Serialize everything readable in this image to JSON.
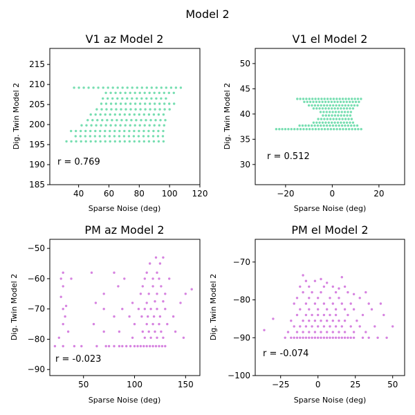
{
  "figure": {
    "suptitle": "Model 2"
  },
  "colors": {
    "green": "#2ecc87",
    "magenta": "#c03fd0"
  },
  "chart_data": [
    {
      "type": "scatter",
      "title": "V1 az Model 2",
      "xlabel": "Sparse Noise (deg)",
      "ylabel": "Dig. Twin Model 2",
      "xlim": [
        21,
        120
      ],
      "ylim": [
        185,
        219
      ],
      "xticks": [
        40,
        60,
        80,
        100,
        120
      ],
      "yticks": [
        185,
        190,
        195,
        200,
        205,
        210,
        215
      ],
      "annotation": "r = 0.769",
      "color_key": "green",
      "rows": [
        {
          "y": 195.8,
          "xmin": 32,
          "xmax": 96
        },
        {
          "y": 197.1,
          "xmin": 38,
          "xmax": 96
        },
        {
          "y": 198.4,
          "xmin": 35,
          "xmax": 98
        },
        {
          "y": 199.8,
          "xmin": 42,
          "xmax": 97
        },
        {
          "y": 201.1,
          "xmin": 46,
          "xmax": 100
        },
        {
          "y": 202.5,
          "xmin": 48,
          "xmax": 99
        },
        {
          "y": 203.8,
          "xmin": 52,
          "xmax": 101
        },
        {
          "y": 205.2,
          "xmin": 55,
          "xmax": 103
        },
        {
          "y": 206.5,
          "xmin": 56,
          "xmax": 100
        },
        {
          "y": 207.9,
          "xmin": 58,
          "xmax": 105
        },
        {
          "y": 209.2,
          "xmin": 37,
          "xmax": 110
        }
      ]
    },
    {
      "type": "scatter",
      "title": "V1 el Model 2",
      "xlabel": "Sparse Noise (deg)",
      "ylabel": "Dig. Twin Model 2",
      "xlim": [
        -33,
        31
      ],
      "ylim": [
        26,
        53
      ],
      "xticks": [
        -20,
        0,
        20
      ],
      "yticks": [
        30,
        35,
        40,
        45,
        50
      ],
      "annotation": "r = 0.512",
      "color_key": "green",
      "rows": [
        {
          "y": 37.0,
          "xmin": -24,
          "xmax": 13
        },
        {
          "y": 37.7,
          "xmin": -14,
          "xmax": 11
        },
        {
          "y": 38.3,
          "xmin": -8,
          "xmax": 10
        },
        {
          "y": 39.0,
          "xmin": -6,
          "xmax": 9
        },
        {
          "y": 39.7,
          "xmin": -4,
          "xmax": 8
        },
        {
          "y": 40.4,
          "xmin": -5,
          "xmax": 9
        },
        {
          "y": 41.1,
          "xmin": -8,
          "xmax": 10
        },
        {
          "y": 41.7,
          "xmin": -10,
          "xmax": 11
        },
        {
          "y": 42.4,
          "xmin": -12,
          "xmax": 12
        },
        {
          "y": 43.0,
          "xmin": -15,
          "xmax": 13
        }
      ]
    },
    {
      "type": "scatter",
      "title": "PM az Model 2",
      "xlabel": "Sparse Noise (deg)",
      "ylabel": "Dig. Twin Model 2",
      "xlim": [
        17,
        164
      ],
      "ylim": [
        -92,
        -47
      ],
      "xticks": [
        50,
        100,
        150
      ],
      "yticks": [
        -90,
        -80,
        -70,
        -60,
        -50
      ],
      "annotation": "r = -0.023",
      "color_key": "magenta",
      "points": [
        [
          22,
          -82.3
        ],
        [
          30,
          -82.3
        ],
        [
          41,
          -82.3
        ],
        [
          48,
          -82.3
        ],
        [
          63,
          -82.3
        ],
        [
          72,
          -82.3
        ],
        [
          75,
          -82.3
        ],
        [
          80,
          -82.3
        ],
        [
          85,
          -82.3
        ],
        [
          88,
          -82.3
        ],
        [
          92,
          -82.3
        ],
        [
          96,
          -82.3
        ],
        [
          100,
          -82.3
        ],
        [
          103,
          -82.3
        ],
        [
          106,
          -82.3
        ],
        [
          109,
          -82.3
        ],
        [
          112,
          -82.3
        ],
        [
          115,
          -82.3
        ],
        [
          118,
          -82.3
        ],
        [
          121,
          -82.3
        ],
        [
          124,
          -82.3
        ],
        [
          127,
          -82.3
        ],
        [
          130,
          -82.3
        ],
        [
          26,
          -79.5
        ],
        [
          98,
          -79.5
        ],
        [
          110,
          -79.5
        ],
        [
          116,
          -79.5
        ],
        [
          122,
          -79.5
        ],
        [
          128,
          -79.5
        ],
        [
          148,
          -79.5
        ],
        [
          35,
          -77.5
        ],
        [
          70,
          -77.5
        ],
        [
          85,
          -77.5
        ],
        [
          108,
          -77.5
        ],
        [
          114,
          -77.5
        ],
        [
          120,
          -77.5
        ],
        [
          126,
          -77.5
        ],
        [
          140,
          -77.5
        ],
        [
          30,
          -75
        ],
        [
          60,
          -75
        ],
        [
          100,
          -75
        ],
        [
          112,
          -75
        ],
        [
          118,
          -75
        ],
        [
          124,
          -75
        ],
        [
          132,
          -75
        ],
        [
          32,
          -72.5
        ],
        [
          80,
          -72.5
        ],
        [
          95,
          -72.5
        ],
        [
          107,
          -72.5
        ],
        [
          113,
          -72.5
        ],
        [
          119,
          -72.5
        ],
        [
          125,
          -72.5
        ],
        [
          138,
          -72.5
        ],
        [
          30,
          -70
        ],
        [
          70,
          -70
        ],
        [
          88,
          -70
        ],
        [
          104,
          -70
        ],
        [
          110,
          -70
        ],
        [
          116,
          -70
        ],
        [
          122,
          -70
        ],
        [
          130,
          -70
        ],
        [
          33,
          -69
        ],
        [
          62,
          -68
        ],
        [
          98,
          -68
        ],
        [
          112,
          -68
        ],
        [
          120,
          -67.5
        ],
        [
          128,
          -67.5
        ],
        [
          145,
          -68
        ],
        [
          28,
          -66
        ],
        [
          70,
          -65
        ],
        [
          106,
          -65
        ],
        [
          114,
          -65
        ],
        [
          122,
          -65
        ],
        [
          130,
          -65
        ],
        [
          150,
          -65
        ],
        [
          30,
          -62.5
        ],
        [
          84,
          -62.5
        ],
        [
          108,
          -62.5
        ],
        [
          118,
          -62.5
        ],
        [
          126,
          -62.5
        ],
        [
          28,
          -60
        ],
        [
          38,
          -60
        ],
        [
          90,
          -60
        ],
        [
          110,
          -60
        ],
        [
          118,
          -60
        ],
        [
          124,
          -60
        ],
        [
          134,
          -60
        ],
        [
          30,
          -58
        ],
        [
          58,
          -58
        ],
        [
          80,
          -58
        ],
        [
          112,
          -58
        ],
        [
          122,
          -58
        ],
        [
          115,
          -55
        ],
        [
          125,
          -55
        ],
        [
          121,
          -53
        ],
        [
          128,
          -53
        ],
        [
          156,
          -63.5
        ]
      ]
    },
    {
      "type": "scatter",
      "title": "PM el Model 2",
      "xlabel": "Sparse Noise (deg)",
      "ylabel": "Dig. Twin Model 2",
      "xlim": [
        -42,
        58
      ],
      "ylim": [
        -100,
        -64
      ],
      "xticks": [
        -25,
        0,
        25,
        50
      ],
      "yticks": [
        -100,
        -90,
        -80,
        -70
      ],
      "annotation": "r = -0.074",
      "color_key": "magenta",
      "points": [
        [
          -36,
          -88
        ],
        [
          -30,
          -85
        ],
        [
          -22,
          -90
        ],
        [
          -18,
          -90
        ],
        [
          -16,
          -90
        ],
        [
          -14,
          -90
        ],
        [
          -12,
          -90
        ],
        [
          -10,
          -90
        ],
        [
          -8,
          -90
        ],
        [
          -6,
          -90
        ],
        [
          -4,
          -90
        ],
        [
          -2,
          -90
        ],
        [
          0,
          -90
        ],
        [
          2,
          -90
        ],
        [
          4,
          -90
        ],
        [
          6,
          -90
        ],
        [
          8,
          -90
        ],
        [
          10,
          -90
        ],
        [
          12,
          -90
        ],
        [
          14,
          -90
        ],
        [
          16,
          -90
        ],
        [
          18,
          -90
        ],
        [
          20,
          -90
        ],
        [
          22,
          -90
        ],
        [
          24,
          -90
        ],
        [
          30,
          -90
        ],
        [
          34,
          -90
        ],
        [
          40,
          -90
        ],
        [
          46,
          -90
        ],
        [
          -20,
          -88.5
        ],
        [
          -14,
          -88.5
        ],
        [
          -10,
          -88.5
        ],
        [
          -6,
          -88.5
        ],
        [
          -2,
          -88.5
        ],
        [
          2,
          -88.5
        ],
        [
          6,
          -88.5
        ],
        [
          10,
          -88.5
        ],
        [
          14,
          -88.5
        ],
        [
          18,
          -88.5
        ],
        [
          24,
          -88.5
        ],
        [
          32,
          -88.5
        ],
        [
          -16,
          -87
        ],
        [
          -12,
          -87
        ],
        [
          -8,
          -87
        ],
        [
          -4,
          -87
        ],
        [
          0,
          -87
        ],
        [
          4,
          -87
        ],
        [
          8,
          -87
        ],
        [
          12,
          -87
        ],
        [
          16,
          -87
        ],
        [
          22,
          -87
        ],
        [
          28,
          -87
        ],
        [
          38,
          -87
        ],
        [
          50,
          -87
        ],
        [
          -18,
          -85.5
        ],
        [
          -10,
          -85.5
        ],
        [
          -6,
          -85.5
        ],
        [
          -2,
          -85.5
        ],
        [
          2,
          -85.5
        ],
        [
          6,
          -85.5
        ],
        [
          10,
          -85.5
        ],
        [
          14,
          -85.5
        ],
        [
          18,
          -85.5
        ],
        [
          26,
          -85.5
        ],
        [
          -14,
          -84
        ],
        [
          -8,
          -84
        ],
        [
          -4,
          -84
        ],
        [
          0,
          -84
        ],
        [
          4,
          -84
        ],
        [
          8,
          -84
        ],
        [
          12,
          -84
        ],
        [
          20,
          -84
        ],
        [
          30,
          -84
        ],
        [
          44,
          -84
        ],
        [
          -12,
          -82.5
        ],
        [
          -6,
          -82.5
        ],
        [
          0,
          -82.5
        ],
        [
          6,
          -82.5
        ],
        [
          12,
          -82.5
        ],
        [
          18,
          -82.5
        ],
        [
          24,
          -82.5
        ],
        [
          36,
          -82.5
        ],
        [
          -16,
          -81
        ],
        [
          -8,
          -81
        ],
        [
          -2,
          -81
        ],
        [
          4,
          -81
        ],
        [
          10,
          -81
        ],
        [
          16,
          -81
        ],
        [
          22,
          -81
        ],
        [
          34,
          -81
        ],
        [
          42,
          -81
        ],
        [
          -14,
          -79.5
        ],
        [
          -6,
          -79.5
        ],
        [
          0,
          -79.5
        ],
        [
          8,
          -79.5
        ],
        [
          14,
          -79.5
        ],
        [
          28,
          -79.5
        ],
        [
          -10,
          -78
        ],
        [
          -4,
          -78
        ],
        [
          2,
          -78
        ],
        [
          12,
          -78
        ],
        [
          20,
          -78
        ],
        [
          32,
          -78
        ],
        [
          -12,
          -76.5
        ],
        [
          -6,
          -76.5
        ],
        [
          4,
          -76.5
        ],
        [
          10,
          -76.5
        ],
        [
          18,
          -76.5
        ],
        [
          -8,
          -75
        ],
        [
          -2,
          -75
        ],
        [
          6,
          -75.5
        ],
        [
          14,
          -77
        ],
        [
          -10,
          -73.5
        ],
        [
          2,
          -74.5
        ],
        [
          16,
          -74
        ],
        [
          24,
          -78.5
        ]
      ]
    }
  ]
}
